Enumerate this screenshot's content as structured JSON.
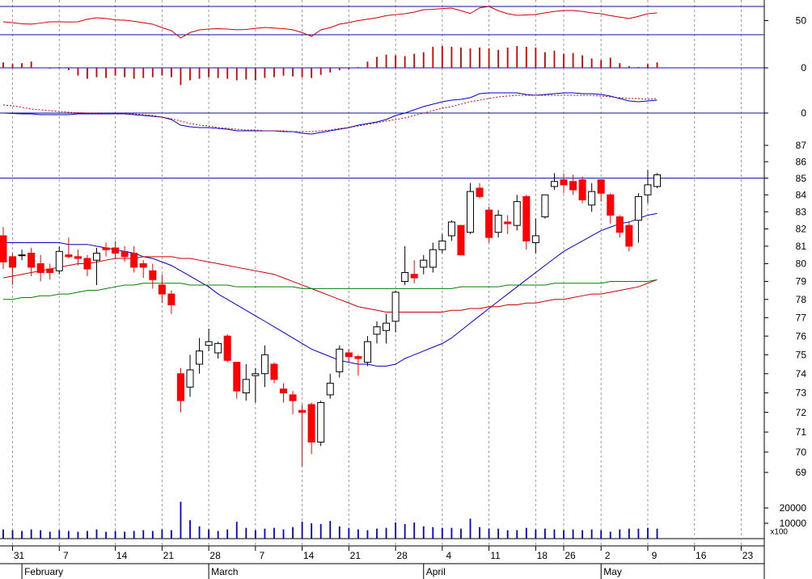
{
  "chart_data": [
    {
      "type": "line",
      "ylim": [
        30,
        70
      ],
      "yticks": [
        50
      ],
      "hlines": [
        30,
        70
      ],
      "series": [
        {
          "color": "#d00000",
          "values": [
            48.3,
            47,
            45.5,
            45,
            46.5,
            48.3,
            48.3,
            48,
            48.3,
            52,
            54,
            53,
            51,
            50.6,
            49,
            47,
            44.9,
            40,
            35.7,
            25.4,
            33,
            36.9,
            38,
            38.5,
            38,
            37,
            37.5,
            39,
            40.3,
            39.5,
            38.5,
            37,
            33,
            27.7,
            36.9,
            40,
            45,
            47.1,
            50,
            52,
            54,
            57,
            58.5,
            59.7,
            62,
            65.4,
            66,
            67,
            67.7,
            64,
            60,
            68,
            70,
            64,
            59.7,
            57.5,
            58,
            58.6,
            61,
            63,
            64.3,
            64.3,
            63,
            61,
            59.7,
            57,
            55,
            52.9,
            56,
            59.7,
            60.9,
            null,
            null,
            null,
            null,
            null,
            null,
            null,
            null,
            null,
            null,
            null
          ]
        }
      ]
    },
    {
      "type": "bar",
      "ylim": [
        -3,
        3
      ],
      "yticks": [
        0
      ],
      "grid": true,
      "color": "#d00000",
      "values": [
        0.7,
        0.5,
        0.6,
        0.8,
        0,
        -0.1,
        0.1,
        -0.3,
        -1.0,
        -1.4,
        -1.2,
        -1.3,
        -1.0,
        -1.2,
        -1.4,
        -1.3,
        -1.2,
        -1.0,
        -1.2,
        -2.2,
        -1.6,
        -1.4,
        -1.2,
        -1.3,
        -1.4,
        -1.6,
        -1.5,
        -1.6,
        -1.3,
        -1.2,
        -1.0,
        -1.1,
        -1.2,
        -1.3,
        -0.9,
        -0.6,
        -0.3,
        -0.2,
        0.1,
        0.8,
        1.4,
        1.7,
        1.6,
        1.5,
        1.8,
        2.0,
        2.7,
        2.8,
        2.7,
        2.6,
        2.5,
        2.6,
        2.5,
        2.3,
        2.6,
        2.8,
        2.7,
        2.6,
        2.0,
        2.2,
        1.8,
        1.9,
        1.6,
        1.2,
        1.0,
        1.3,
        0.6,
        0.2,
        0.1,
        0.5,
        0.7,
        null,
        null,
        null,
        null,
        null,
        null,
        null,
        null,
        null,
        null,
        null
      ]
    },
    {
      "type": "line",
      "ylim": [
        -4.2,
        4.2
      ],
      "yticks": [
        0
      ],
      "grid": true,
      "series": [
        {
          "color": "#0000cc",
          "values": [
            0,
            -0.05,
            -0.1,
            -0.1,
            -0.2,
            -0.2,
            -0.2,
            -0.2,
            -0.1,
            -0.1,
            -0.1,
            -0.1,
            -0.1,
            -0.1,
            -0.2,
            -0.3,
            -0.4,
            -0.5,
            -0.8,
            -1.5,
            -1.7,
            -1.8,
            -1.8,
            -1.9,
            -2.0,
            -2.2,
            -2.2,
            -2.2,
            -2.2,
            -2.2,
            -2.3,
            -2.3,
            -2.5,
            -2.6,
            -2.4,
            -2.2,
            -2.0,
            -1.8,
            -1.5,
            -1.3,
            -1.1,
            -0.8,
            -0.3,
            0.0,
            0.4,
            0.8,
            1.1,
            1.4,
            1.6,
            1.7,
            1.9,
            2.4,
            2.5,
            2.5,
            2.5,
            2.5,
            2.3,
            2.2,
            2.3,
            2.4,
            2.5,
            2.5,
            2.4,
            2.4,
            2.3,
            2.1,
            1.8,
            1.5,
            1.4,
            1.5,
            1.6,
            null,
            null,
            null,
            null,
            null,
            null,
            null,
            null,
            null,
            null,
            null
          ]
        },
        {
          "color": "#d00000",
          "dash": true,
          "values": [
            1.0,
            0.9,
            0.7,
            0.5,
            0.4,
            0.3,
            0.2,
            0.1,
            0.05,
            0,
            0,
            -0.05,
            -0.1,
            -0.1,
            -0.1,
            -0.2,
            -0.3,
            -0.5,
            -0.7,
            -1.0,
            -1.3,
            -1.5,
            -1.6,
            -1.8,
            -1.9,
            -2.0,
            -2.1,
            -2.1,
            -2.2,
            -2.2,
            -2.2,
            -2.3,
            -2.3,
            -2.3,
            -2.2,
            -2.1,
            -1.9,
            -1.8,
            -1.6,
            -1.4,
            -1.2,
            -1.0,
            -0.8,
            -0.6,
            -0.3,
            0,
            0.3,
            0.6,
            0.8,
            1.1,
            1.4,
            1.6,
            1.8,
            2.0,
            2.1,
            2.2,
            2.2,
            2.2,
            2.2,
            2.2,
            2.2,
            2.2,
            2.2,
            2.2,
            2.1,
            2.0,
            1.9,
            1.8,
            1.8,
            1.7,
            1.8,
            null,
            null,
            null,
            null,
            null,
            null,
            null,
            null,
            null,
            null,
            null
          ]
        }
      ]
    },
    {
      "type": "candlestick",
      "ylim": [
        68.41,
        87.75
      ],
      "ylog": true,
      "yticks": [
        69,
        70,
        71,
        72,
        73,
        74,
        75,
        76,
        77,
        78,
        79,
        80,
        81,
        82,
        83,
        84,
        85,
        86,
        87
      ],
      "hlines": [
        85
      ],
      "up_color": "#ffffff",
      "down_color": "#ff0000",
      "categories": [
        null,
        "31",
        null,
        null,
        null,
        null,
        "7",
        null,
        null,
        null,
        null,
        null,
        "14",
        null,
        null,
        null,
        null,
        "21",
        null,
        null,
        null,
        null,
        "28",
        null,
        null,
        null,
        null,
        "7",
        null,
        null,
        null,
        null,
        "14",
        null,
        null,
        null,
        null,
        "21",
        null,
        null,
        null,
        null,
        "28",
        null,
        null,
        null,
        null,
        "4",
        null,
        null,
        null,
        null,
        "11",
        null,
        null,
        null,
        null,
        "18",
        null,
        null,
        "26",
        null,
        null,
        null,
        "2",
        null,
        null,
        null,
        null,
        "9",
        null,
        null,
        null,
        null,
        "16",
        null,
        null,
        null,
        null,
        "23",
        null,
        null
      ],
      "month_categories": [
        null,
        null,
        "February",
        null,
        null,
        null,
        null,
        null,
        null,
        null,
        null,
        null,
        null,
        null,
        null,
        null,
        null,
        null,
        null,
        null,
        null,
        null,
        "March",
        null,
        null,
        null,
        null,
        null,
        null,
        null,
        null,
        null,
        null,
        null,
        null,
        null,
        null,
        null,
        null,
        null,
        null,
        null,
        null,
        null,
        null,
        "April",
        null,
        null,
        null,
        null,
        null,
        null,
        null,
        null,
        null,
        null,
        null,
        null,
        null,
        null,
        null,
        null,
        null,
        null,
        "May",
        null,
        null,
        null,
        null,
        null,
        null,
        null,
        null,
        null,
        null,
        null,
        null,
        null,
        null,
        null,
        null,
        null
      ],
      "open": [
        81.6,
        80.4,
        80.5,
        80.6,
        80.0,
        79.7,
        79.6,
        80.5,
        80.4,
        80.3,
        80.2,
        80.9,
        80.9,
        80.7,
        80.6,
        80.0,
        79.6,
        78.8,
        78.3,
        74.0,
        73.3,
        74.5,
        75.5,
        75.1,
        76.0,
        74.6,
        73.0,
        73.9,
        74.0,
        74.5,
        73.2,
        72.9,
        72.1,
        72.4,
        70.5,
        72.9,
        74.1,
        75.1,
        74.9,
        74.6,
        76.1,
        76.3,
        76.8,
        79.0,
        79.4,
        79.8,
        79.8,
        80.8,
        81.6,
        82.2,
        81.8,
        84.4,
        83.1,
        81.8,
        82.4,
        82.2,
        83.9,
        81.2,
        82.7,
        84.5,
        84.9,
        84.8,
        84.9,
        83.4,
        84.9,
        84.0,
        82.7,
        82.2,
        82.5,
        84.0,
        84.5,
        null,
        null,
        null,
        null,
        null,
        null,
        null,
        null,
        null,
        null,
        null
      ],
      "high": [
        82.1,
        80.6,
        80.8,
        80.9,
        80.5,
        80.0,
        81.0,
        81.5,
        80.8,
        80.5,
        80.9,
        81.2,
        81.3,
        81.0,
        81.0,
        80.2,
        80.0,
        79.4,
        78.5,
        74.3,
        75.0,
        75.9,
        76.4,
        75.7,
        76.1,
        74.6,
        74.5,
        74.3,
        75.5,
        74.6,
        73.5,
        73.1,
        72.4,
        72.5,
        72.6,
        74.0,
        75.5,
        75.3,
        75.0,
        76.0,
        76.8,
        77.2,
        78.5,
        81.0,
        80.2,
        80.5,
        81.2,
        81.7,
        82.5,
        82.2,
        84.7,
        84.7,
        83.3,
        83.1,
        82.8,
        84.0,
        84.0,
        82.6,
        84.0,
        85.3,
        85.3,
        85.2,
        85.1,
        84.7,
        84.9,
        84.1,
        82.8,
        82.4,
        84.1,
        85.5,
        85.3,
        null,
        null,
        null,
        null,
        null,
        null,
        null,
        null,
        null,
        null,
        null
      ],
      "low": [
        79.7,
        78.8,
        80.2,
        79.3,
        79.0,
        79.1,
        79.4,
        80.3,
        79.9,
        79.3,
        78.8,
        80.4,
        80.3,
        80.1,
        79.5,
        79.2,
        78.6,
        77.8,
        77.2,
        72.0,
        72.8,
        74.0,
        75.2,
        74.8,
        74.6,
        72.7,
        72.6,
        72.5,
        73.3,
        73.5,
        72.5,
        71.9,
        69.3,
        69.9,
        70.3,
        72.7,
        73.8,
        74.6,
        73.9,
        74.4,
        75.6,
        75.6,
        76.2,
        78.8,
        78.9,
        79.4,
        79.5,
        80.6,
        81.3,
        80.5,
        81.7,
        83.8,
        81.2,
        81.5,
        81.7,
        81.9,
        80.8,
        80.6,
        82.6,
        84.3,
        84.1,
        84.0,
        83.5,
        83.0,
        83.6,
        82.3,
        81.5,
        80.7,
        81.2,
        83.5,
        84.4,
        null,
        null,
        null,
        null,
        null,
        null,
        null,
        null,
        null,
        null,
        null
      ],
      "close": [
        80.1,
        79.8,
        80.5,
        79.8,
        79.5,
        79.5,
        80.7,
        80.4,
        80.3,
        79.7,
        80.6,
        80.8,
        80.6,
        80.4,
        79.8,
        79.8,
        79.1,
        78.3,
        77.7,
        72.6,
        74.2,
        75.2,
        75.7,
        75.6,
        74.7,
        73.1,
        73.7,
        74.0,
        75.0,
        73.7,
        73.0,
        72.6,
        72.0,
        70.5,
        72.5,
        73.5,
        75.3,
        74.9,
        74.8,
        75.7,
        76.5,
        76.7,
        78.4,
        79.5,
        79.2,
        80.2,
        80.8,
        81.3,
        82.4,
        80.5,
        84.2,
        83.9,
        81.5,
        82.8,
        82.3,
        83.6,
        81.3,
        81.6,
        84.0,
        84.8,
        84.6,
        84.3,
        83.7,
        84.2,
        84.1,
        82.8,
        81.8,
        81.0,
        83.9,
        84.6,
        85.2,
        null,
        null,
        null,
        null,
        null,
        null,
        null,
        null,
        null,
        null,
        null
      ],
      "series": [
        {
          "color": "#0000cc",
          "values": [
            81.2,
            81.2,
            81.2,
            81.2,
            81.2,
            81.2,
            81.2,
            81.1,
            81.1,
            81.1,
            81.0,
            80.9,
            80.8,
            80.7,
            80.6,
            80.4,
            80.3,
            80.1,
            79.9,
            79.6,
            79.3,
            79.0,
            78.7,
            78.3,
            78.0,
            77.7,
            77.4,
            77.1,
            76.8,
            76.5,
            76.2,
            75.9,
            75.6,
            75.3,
            75.1,
            74.9,
            74.7,
            74.6,
            74.5,
            74.5,
            74.4,
            74.4,
            74.5,
            74.8,
            75.0,
            75.2,
            75.4,
            75.6,
            75.9,
            76.3,
            76.7,
            77.1,
            77.5,
            77.9,
            78.3,
            78.7,
            79.1,
            79.5,
            79.9,
            80.3,
            80.7,
            81.0,
            81.3,
            81.6,
            81.9,
            82.1,
            82.3,
            82.4,
            82.6,
            82.8,
            82.9,
            null,
            null,
            null,
            null,
            null,
            null,
            null,
            null,
            null,
            null,
            null
          ]
        },
        {
          "color": "#cc0000",
          "values": [
            79.2,
            79.3,
            79.4,
            79.5,
            79.6,
            79.7,
            79.8,
            79.9,
            80.0,
            80.0,
            80.1,
            80.2,
            80.3,
            80.3,
            80.3,
            80.4,
            80.4,
            80.4,
            80.4,
            80.3,
            80.3,
            80.2,
            80.1,
            80.0,
            79.9,
            79.8,
            79.7,
            79.6,
            79.5,
            79.4,
            79.2,
            79.0,
            78.8,
            78.6,
            78.4,
            78.2,
            78.0,
            77.8,
            77.6,
            77.5,
            77.4,
            77.3,
            77.3,
            77.3,
            77.3,
            77.3,
            77.3,
            77.3,
            77.4,
            77.4,
            77.5,
            77.5,
            77.6,
            77.6,
            77.7,
            77.7,
            77.8,
            77.8,
            77.9,
            78.0,
            78.0,
            78.1,
            78.2,
            78.3,
            78.3,
            78.4,
            78.5,
            78.6,
            78.7,
            78.9,
            79.1,
            null,
            null,
            null,
            null,
            null,
            null,
            null,
            null,
            null,
            null,
            null
          ]
        },
        {
          "color": "#008000",
          "values": [
            78.0,
            78.0,
            78.1,
            78.1,
            78.2,
            78.2,
            78.3,
            78.3,
            78.4,
            78.5,
            78.5,
            78.6,
            78.7,
            78.8,
            78.8,
            78.9,
            78.9,
            78.9,
            78.9,
            78.9,
            78.8,
            78.8,
            78.8,
            78.8,
            78.8,
            78.7,
            78.7,
            78.7,
            78.7,
            78.7,
            78.7,
            78.7,
            78.6,
            78.6,
            78.6,
            78.6,
            78.6,
            78.6,
            78.6,
            78.6,
            78.6,
            78.6,
            78.6,
            78.6,
            78.6,
            78.6,
            78.6,
            78.6,
            78.6,
            78.7,
            78.7,
            78.7,
            78.7,
            78.7,
            78.8,
            78.8,
            78.8,
            78.8,
            78.8,
            78.9,
            78.9,
            78.9,
            78.9,
            78.9,
            78.9,
            79.0,
            79.0,
            79.0,
            79.0,
            79.0,
            79.1,
            null,
            null,
            null,
            null,
            null,
            null,
            null,
            null,
            null,
            null,
            null
          ]
        }
      ]
    },
    {
      "type": "bar",
      "ylim": [
        0,
        30000
      ],
      "yticks": [
        10000,
        20000
      ],
      "unit_label": "x100",
      "color": "#0000cc",
      "values": [
        6000,
        5500,
        5000,
        6000,
        5500,
        4500,
        5500,
        5000,
        4500,
        5000,
        6000,
        4500,
        5000,
        4500,
        5000,
        5500,
        5000,
        6000,
        5500,
        24000,
        12000,
        8000,
        6000,
        5000,
        6000,
        11000,
        7000,
        5500,
        6500,
        7000,
        6000,
        7500,
        11000,
        10000,
        9500,
        11500,
        8000,
        7000,
        6000,
        5500,
        6500,
        7000,
        10500,
        9500,
        10500,
        8000,
        7500,
        7000,
        7000,
        6500,
        13000,
        7500,
        6500,
        6500,
        5500,
        5500,
        7000,
        6000,
        6500,
        6000,
        5500,
        6000,
        5500,
        6000,
        5500,
        4500,
        6000,
        6500,
        6500,
        7000,
        6500,
        null,
        null,
        null,
        null,
        null,
        null,
        null,
        null,
        null,
        null,
        null
      ]
    }
  ]
}
